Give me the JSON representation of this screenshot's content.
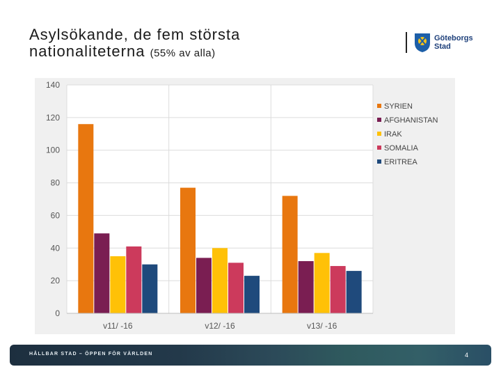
{
  "slide": {
    "title_line1": "Asylsökande, de fem största",
    "title_line2": "nationaliteterna",
    "title_note": "(55% av alla)",
    "footer_text": "HÅLLBAR STAD – ÖPPEN FÖR VÄRLDEN",
    "page_number": "4"
  },
  "logo": {
    "line1": "Göteborgs",
    "line2": "Stad"
  },
  "chart_data": {
    "type": "bar",
    "categories": [
      "v11/ -16",
      "v12/ -16",
      "v13/ -16"
    ],
    "series": [
      {
        "name": "SYRIEN",
        "values": [
          116,
          77,
          72
        ],
        "color": "#e8770f"
      },
      {
        "name": "AFGHANISTAN",
        "values": [
          49,
          34,
          32
        ],
        "color": "#7a1e52"
      },
      {
        "name": "IRAK",
        "values": [
          35,
          40,
          37
        ],
        "color": "#ffc107"
      },
      {
        "name": "SOMALIA",
        "values": [
          41,
          31,
          29
        ],
        "color": "#cc3a5c"
      },
      {
        "name": "ERITREA",
        "values": [
          30,
          23,
          26
        ],
        "color": "#1f4a7c"
      }
    ],
    "ylim": [
      0,
      140
    ],
    "yticks": [
      "0",
      "20",
      "40",
      "60",
      "80",
      "100",
      "120",
      "140"
    ],
    "title": "",
    "xlabel": "",
    "ylabel": "",
    "legend_position": "right"
  }
}
